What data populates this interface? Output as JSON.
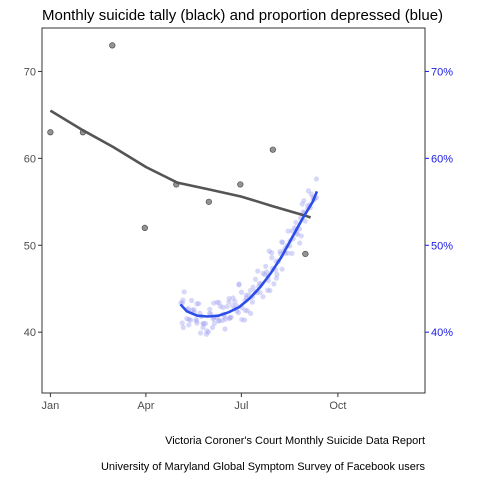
{
  "chart_data": {
    "type": "scatter",
    "title": "Monthly suicide tally (black) and proportion depressed (blue)",
    "captions": [
      "Victoria Coroner's Court Monthly Suicide Data Report",
      "University of Maryland Global Symptom Survey of Facebook users"
    ],
    "x_axis": {
      "ticks": [
        {
          "label": "Jan",
          "day": 0
        },
        {
          "label": "Apr",
          "day": 91
        },
        {
          "label": "Jul",
          "day": 182
        },
        {
          "label": "Oct",
          "day": 274
        }
      ],
      "range_days": [
        -8,
        357
      ]
    },
    "y_left": {
      "ticks": [
        40,
        50,
        60,
        70
      ],
      "range": [
        33,
        75
      ]
    },
    "y_right": {
      "ticks": [
        {
          "value": 0.4,
          "label": "40%"
        },
        {
          "value": 0.5,
          "label": "50%"
        },
        {
          "value": 0.6,
          "label": "60%"
        },
        {
          "value": 0.7,
          "label": "70%"
        }
      ],
      "range": [
        0.33,
        0.75
      ]
    },
    "grid": false,
    "series": [
      {
        "points": [
          {
            "month": "Jan",
            "value": 63
          },
          {
            "month": "Feb",
            "value": 63
          },
          {
            "month": "Mar",
            "value": 73
          },
          {
            "month": "Apr",
            "value": 52
          },
          {
            "month": "May",
            "value": 57
          },
          {
            "month": "Jun",
            "value": 55
          },
          {
            "month": "Jul",
            "value": 57
          },
          {
            "month": "Aug",
            "value": 61
          },
          {
            "month": "Sep",
            "value": 49
          }
        ],
        "trend": [
          [
            0,
            65.5
          ],
          [
            30,
            63.3
          ],
          [
            60,
            61.3
          ],
          [
            91,
            59.0
          ],
          [
            121,
            57.2
          ],
          [
            152,
            56.4
          ],
          [
            182,
            55.6
          ],
          [
            212,
            54.5
          ],
          [
            243,
            53.4
          ],
          [
            248,
            53.2
          ]
        ],
        "color": "#555555",
        "point_color": "#808080",
        "axis": "left"
      },
      {
        "point_count": 150,
        "range_start": {
          "day": 124,
          "value": 0.44
        },
        "range_end": {
          "day": 254,
          "value": 0.56
        },
        "spread": 0.028,
        "trend": [
          [
            124,
            0.432
          ],
          [
            130,
            0.424
          ],
          [
            140,
            0.419
          ],
          [
            150,
            0.418
          ],
          [
            160,
            0.419
          ],
          [
            170,
            0.423
          ],
          [
            180,
            0.429
          ],
          [
            190,
            0.439
          ],
          [
            200,
            0.452
          ],
          [
            210,
            0.468
          ],
          [
            220,
            0.486
          ],
          [
            230,
            0.508
          ],
          [
            240,
            0.53
          ],
          [
            250,
            0.55
          ],
          [
            254,
            0.562
          ]
        ],
        "color": "#2b4ee8",
        "point_color": "#a6a6f2",
        "axis": "right"
      }
    ]
  }
}
